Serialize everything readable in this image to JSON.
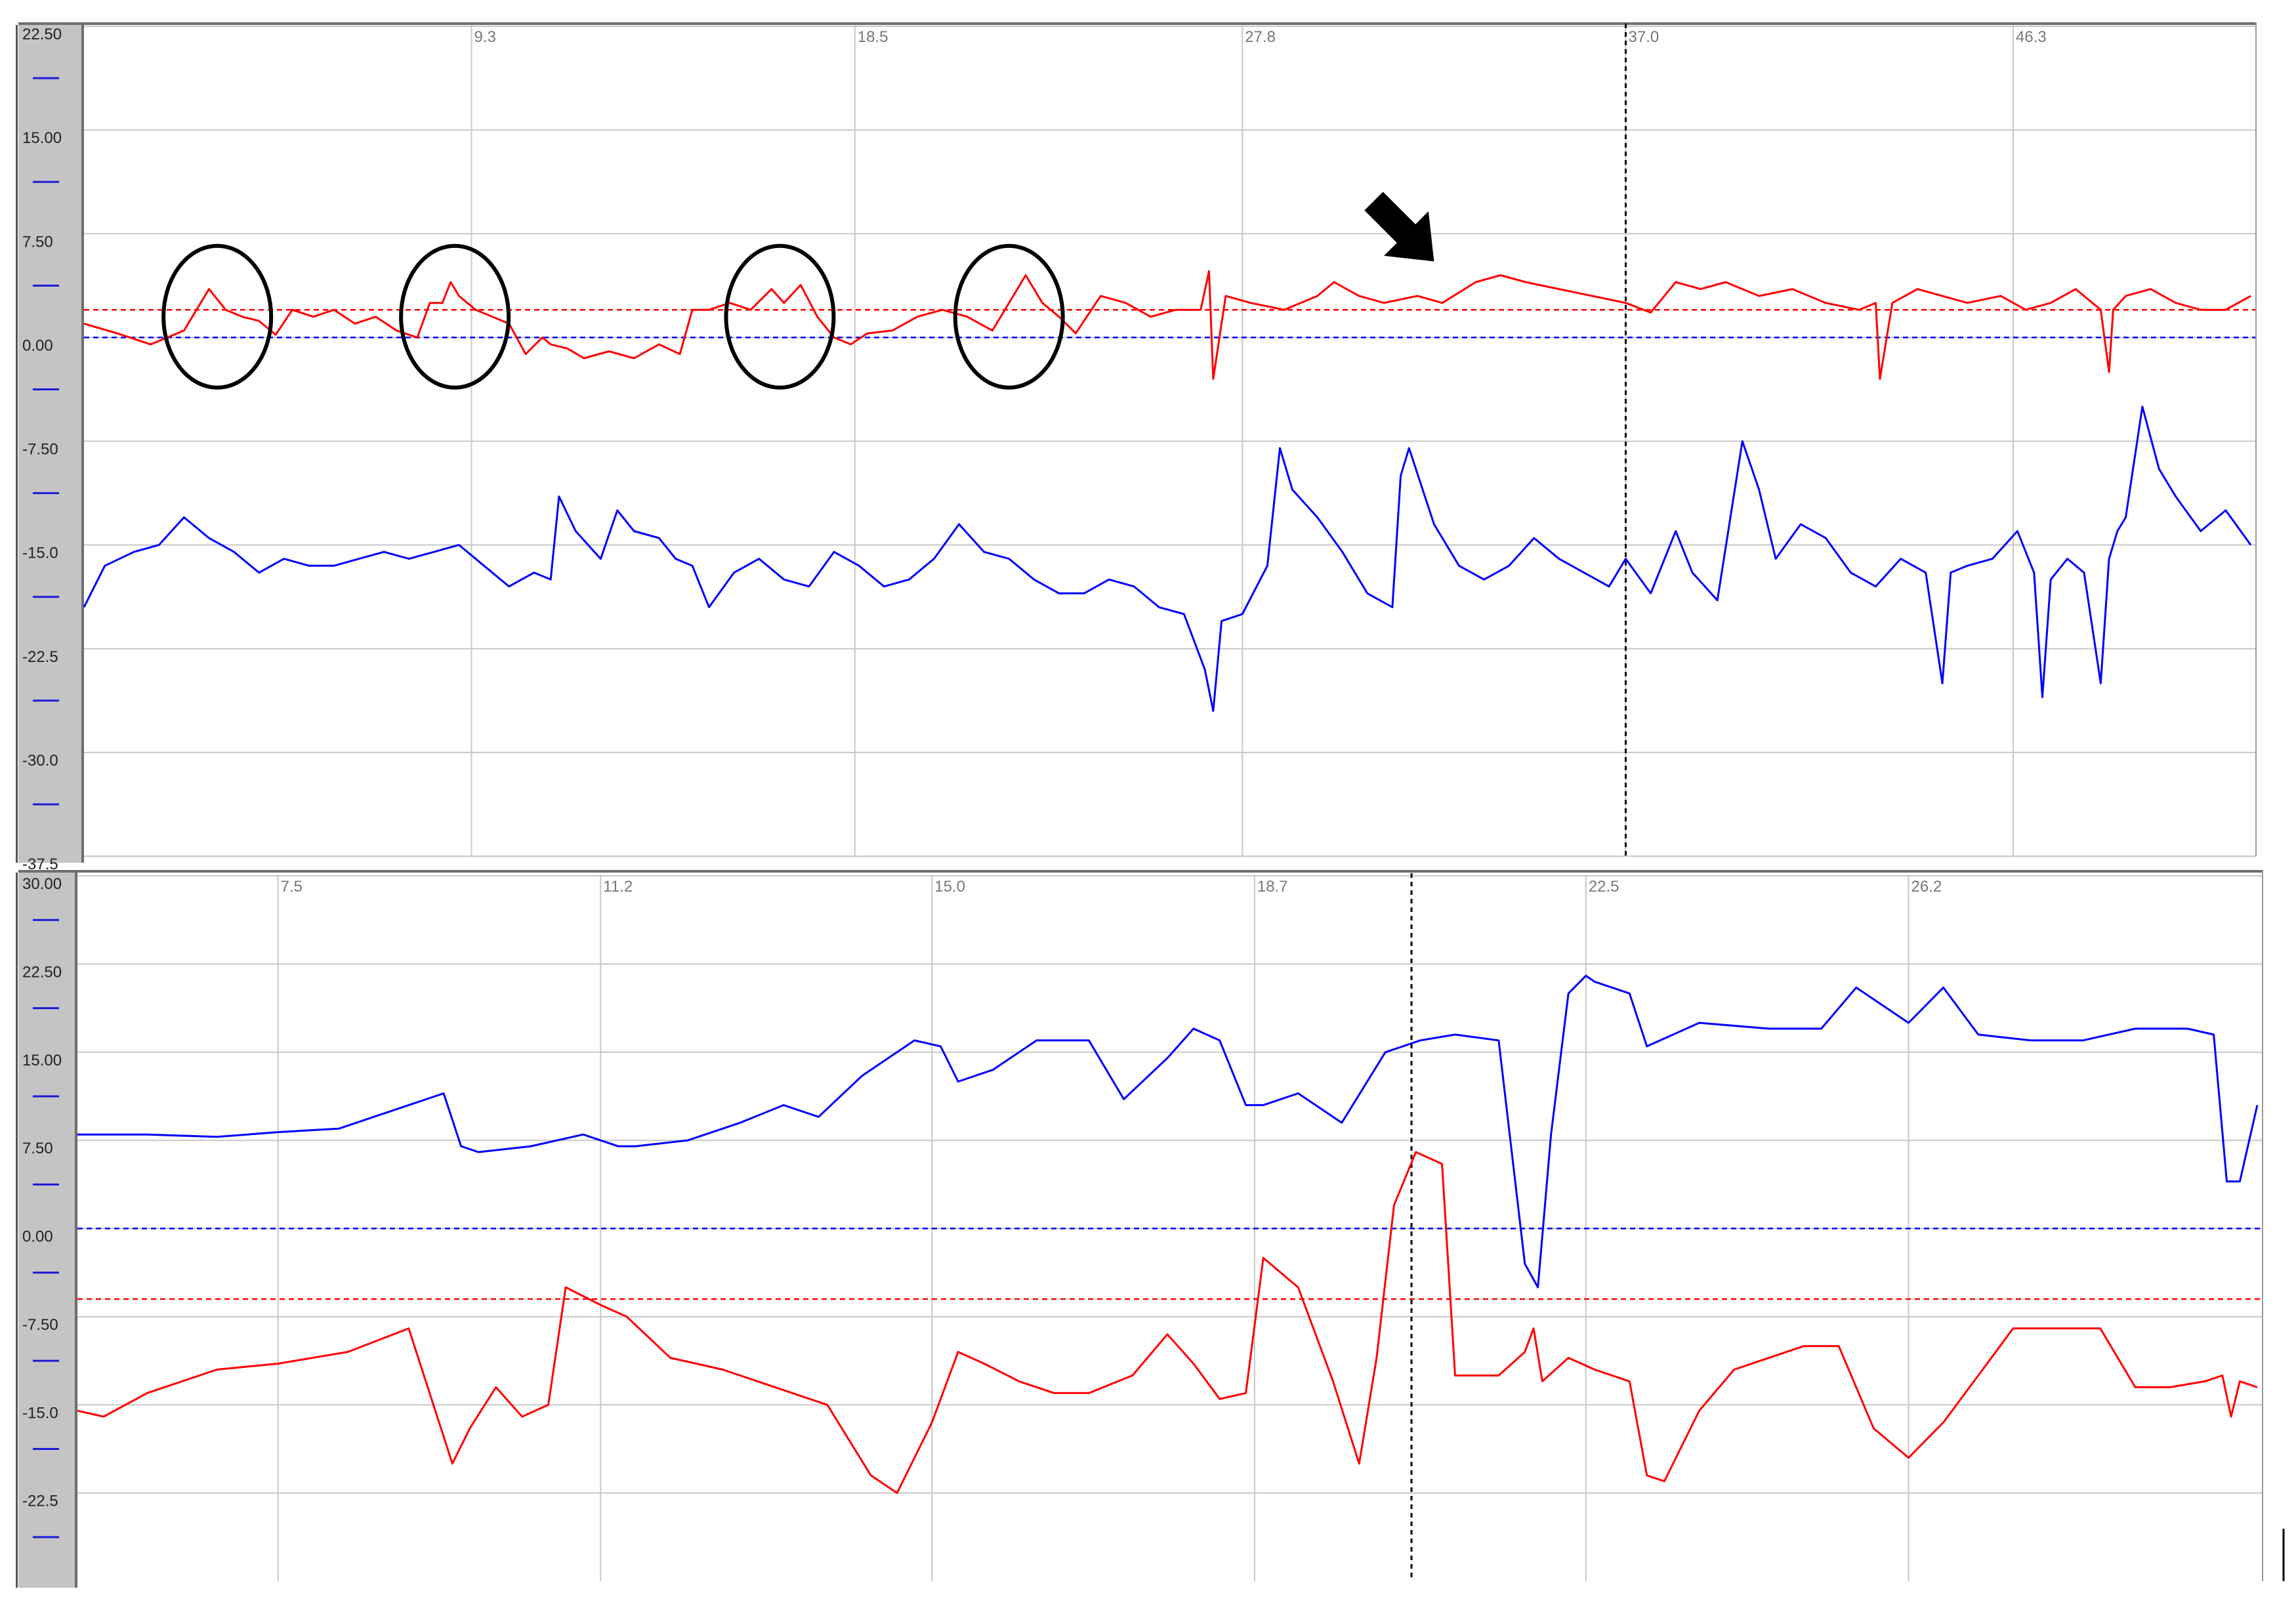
{
  "colors": {
    "red": "#ff0000",
    "blue": "#0000ff",
    "grid": "#c8c8c8",
    "axis_panel": "#c4c4c4",
    "frame": "#6e6e6e",
    "marker": "#000000"
  },
  "chart_data": [
    {
      "type": "line",
      "ylim": [
        -37.5,
        22.5
      ],
      "xlim": [
        0,
        52.0
      ],
      "y_ticks": [
        "22.50",
        "15.00",
        "7.50",
        "0.00",
        "-7.50",
        "-15.0",
        "-22.5",
        "-30.0",
        "-37.5"
      ],
      "y_tick_values": [
        22.5,
        15,
        7.5,
        0,
        -7.5,
        -15,
        -22.5,
        -30,
        -37.5
      ],
      "x_ticks": [
        "9.3",
        "18.5",
        "27.8",
        "37.0",
        "46.3"
      ],
      "x_tick_values": [
        9.3,
        18.5,
        27.8,
        37.0,
        46.3
      ],
      "cursor_x": 37.0,
      "reference_lines": [
        {
          "color": "red",
          "y": 2.0,
          "style": "dashed"
        },
        {
          "color": "blue",
          "y": 0.0,
          "style": "dashed"
        }
      ],
      "annotations": {
        "circles": [
          {
            "x": 3.2,
            "y": 1.5
          },
          {
            "x": 8.9,
            "y": 1.5
          },
          {
            "x": 16.7,
            "y": 1.5
          },
          {
            "x": 22.2,
            "y": 1.5
          }
        ],
        "arrow": {
          "x": 32.4,
          "y": 5.5,
          "direction": "down-right"
        }
      },
      "series": [
        {
          "color": "red",
          "x": [
            0,
            0.8,
            1.6,
            2.4,
            2.8,
            3.0,
            3.4,
            3.8,
            4.2,
            4.6,
            5.0,
            5.5,
            6.0,
            6.5,
            7.0,
            7.5,
            8.0,
            8.3,
            8.6,
            8.8,
            9.0,
            9.4,
            9.8,
            10.2,
            10.6,
            11.0,
            11.2,
            11.6,
            12.0,
            12.6,
            13.2,
            13.8,
            14.3,
            14.6,
            15.0,
            15.5,
            16.0,
            16.5,
            16.8,
            17.2,
            17.6,
            18.0,
            18.4,
            18.8,
            19.4,
            20.0,
            20.6,
            21.2,
            21.8,
            22.2,
            22.6,
            23.0,
            23.4,
            23.8,
            24.4,
            25.0,
            25.6,
            26.2,
            26.8,
            27.0,
            27.1,
            27.4,
            28.0,
            28.8,
            29.6,
            30.0,
            30.6,
            31.2,
            32.0,
            32.6,
            33.4,
            34.0,
            34.6,
            35.4,
            36.2,
            37.0,
            37.6,
            38.2,
            38.8,
            39.4,
            40.2,
            41.0,
            41.8,
            42.6,
            43.0,
            43.1,
            43.4,
            44.0,
            44.6,
            45.2,
            46.0,
            46.6,
            47.2,
            47.8,
            48.4,
            48.6,
            48.7,
            49.0,
            49.6,
            50.2,
            50.8,
            51.4,
            52.0
          ],
          "values": [
            1.0,
            0.3,
            -0.5,
            0.5,
            2.5,
            3.5,
            2.0,
            1.5,
            1.2,
            0.2,
            2.0,
            1.5,
            2.0,
            1.0,
            1.5,
            0.5,
            0.0,
            2.5,
            2.5,
            4.0,
            3.0,
            2.0,
            1.5,
            1.0,
            -1.2,
            0.0,
            -0.5,
            -0.8,
            -1.5,
            -1.0,
            -1.5,
            -0.5,
            -1.2,
            2.0,
            2.0,
            2.5,
            2.0,
            3.5,
            2.5,
            3.8,
            1.5,
            0.0,
            -0.5,
            0.3,
            0.5,
            1.5,
            2.0,
            1.5,
            0.5,
            2.5,
            4.5,
            2.5,
            1.5,
            0.3,
            3.0,
            2.5,
            1.5,
            2.0,
            2.0,
            4.8,
            -3.0,
            3.0,
            2.5,
            2.0,
            3.0,
            4.0,
            3.0,
            2.5,
            3.0,
            2.5,
            4.0,
            4.5,
            4.0,
            3.5,
            3.0,
            2.5,
            1.8,
            4.0,
            3.5,
            4.0,
            3.0,
            3.5,
            2.5,
            2.0,
            2.5,
            -3.0,
            2.5,
            3.5,
            3.0,
            2.5,
            3.0,
            2.0,
            2.5,
            3.5,
            2.0,
            -2.5,
            2.0,
            3.0,
            3.5,
            2.5,
            2.0,
            2.0,
            3.0
          ]
        },
        {
          "color": "blue",
          "x": [
            0,
            0.5,
            1.2,
            1.8,
            2.4,
            3.0,
            3.6,
            4.2,
            4.8,
            5.4,
            6.0,
            6.6,
            7.2,
            7.8,
            8.4,
            9.0,
            9.6,
            10.2,
            10.8,
            11.2,
            11.4,
            11.8,
            12.4,
            12.8,
            13.2,
            13.8,
            14.2,
            14.6,
            15.0,
            15.6,
            16.2,
            16.8,
            17.4,
            18.0,
            18.6,
            19.2,
            19.8,
            20.4,
            21.0,
            21.6,
            22.2,
            22.8,
            23.4,
            24.0,
            24.6,
            25.2,
            25.8,
            26.4,
            26.9,
            27.1,
            27.3,
            27.8,
            28.4,
            28.7,
            29.0,
            29.6,
            30.2,
            30.8,
            31.4,
            31.6,
            31.8,
            32.4,
            33.0,
            33.6,
            34.2,
            34.8,
            35.4,
            36.0,
            36.6,
            37.0,
            37.6,
            38.2,
            38.6,
            39.2,
            39.8,
            40.2,
            40.6,
            41.2,
            41.8,
            42.4,
            43.0,
            43.6,
            44.2,
            44.6,
            44.8,
            45.2,
            45.8,
            46.4,
            46.8,
            47.0,
            47.2,
            47.6,
            48.0,
            48.4,
            48.6,
            48.8,
            49.0,
            49.4,
            49.8,
            50.2,
            50.8,
            51.4,
            52.0
          ],
          "values": [
            -19.5,
            -16.5,
            -15.5,
            -15.0,
            -13.0,
            -14.5,
            -15.5,
            -17.0,
            -16.0,
            -16.5,
            -16.5,
            -16.0,
            -15.5,
            -16.0,
            -15.5,
            -15.0,
            -16.5,
            -18.0,
            -17.0,
            -17.5,
            -11.5,
            -14.0,
            -16.0,
            -12.5,
            -14.0,
            -14.5,
            -16.0,
            -16.5,
            -19.5,
            -17.0,
            -16.0,
            -17.5,
            -18.0,
            -15.5,
            -16.5,
            -18.0,
            -17.5,
            -16.0,
            -13.5,
            -15.5,
            -16.0,
            -17.5,
            -18.5,
            -18.5,
            -17.5,
            -18.0,
            -19.5,
            -20.0,
            -24.0,
            -27.0,
            -20.5,
            -20.0,
            -16.5,
            -8.0,
            -11.0,
            -13.0,
            -15.5,
            -18.5,
            -19.5,
            -10.0,
            -8.0,
            -13.5,
            -16.5,
            -17.5,
            -16.5,
            -14.5,
            -16.0,
            -17.0,
            -18.0,
            -16.0,
            -18.5,
            -14.0,
            -17.0,
            -19.0,
            -7.5,
            -11.0,
            -16.0,
            -13.5,
            -14.5,
            -17.0,
            -18.0,
            -16.0,
            -17.0,
            -25.0,
            -17.0,
            -16.5,
            -16.0,
            -14.0,
            -17.0,
            -26.0,
            -17.5,
            -16.0,
            -17.0,
            -25.0,
            -16.0,
            -14.0,
            -13.0,
            -5.0,
            -9.5,
            -11.5,
            -14.0,
            -12.5,
            -15.0
          ]
        }
      ]
    },
    {
      "type": "line",
      "ylim": [
        -30.0,
        30.0
      ],
      "xlim": [
        5.2,
        30.2
      ],
      "y_ticks": [
        "30.00",
        "22.50",
        "15.00",
        "7.50",
        "0.00",
        "-7.50",
        "-15.0",
        "-22.5"
      ],
      "y_tick_values": [
        30,
        22.5,
        15,
        7.5,
        0,
        -7.5,
        -15,
        -22.5
      ],
      "x_ticks": [
        "7.5",
        "11.2",
        "15.0",
        "18.7",
        "22.5",
        "26.2"
      ],
      "x_tick_values": [
        7.5,
        11.2,
        15.0,
        18.7,
        22.5,
        26.2
      ],
      "cursor_x": 20.5,
      "reference_lines": [
        {
          "color": "red",
          "y": -6.0,
          "style": "dashed"
        },
        {
          "color": "blue",
          "y": 0.0,
          "style": "dashed"
        }
      ],
      "series": [
        {
          "color": "blue",
          "x": [
            5.2,
            6.0,
            6.8,
            7.5,
            8.2,
            8.8,
            9.4,
            9.6,
            9.8,
            10.4,
            11.0,
            11.4,
            11.6,
            12.2,
            12.8,
            13.3,
            13.7,
            14.2,
            14.8,
            15.1,
            15.3,
            15.7,
            16.2,
            16.8,
            17.2,
            17.7,
            18.0,
            18.3,
            18.6,
            18.8,
            19.2,
            19.7,
            20.2,
            20.6,
            21.0,
            21.5,
            21.8,
            21.95,
            22.1,
            22.3,
            22.5,
            22.6,
            23.0,
            23.2,
            23.8,
            24.6,
            25.2,
            25.6,
            26.2,
            26.6,
            27.0,
            27.6,
            28.2,
            28.8,
            29.4,
            29.7,
            29.85,
            30.0,
            30.2
          ],
          "values": [
            8.0,
            8.0,
            7.8,
            8.2,
            8.5,
            10.0,
            11.5,
            7.0,
            6.5,
            7.0,
            8.0,
            7.0,
            7.0,
            7.5,
            9.0,
            10.5,
            9.5,
            13.0,
            16.0,
            15.5,
            12.5,
            13.5,
            16.0,
            16.0,
            11.0,
            14.5,
            17.0,
            16.0,
            10.5,
            10.5,
            11.5,
            9.0,
            15.0,
            16.0,
            16.5,
            16.0,
            -3.0,
            -5.0,
            8.0,
            20.0,
            21.5,
            21.0,
            20.0,
            15.5,
            17.5,
            17.0,
            17.0,
            20.5,
            17.5,
            20.5,
            16.5,
            16.0,
            16.0,
            17.0,
            17.0,
            16.5,
            4.0,
            4.0,
            10.5
          ]
        },
        {
          "color": "red",
          "x": [
            5.2,
            5.5,
            6.0,
            6.8,
            7.5,
            8.3,
            9.0,
            9.5,
            9.7,
            10.0,
            10.3,
            10.6,
            10.8,
            11.2,
            11.5,
            12.0,
            12.6,
            13.2,
            13.8,
            14.3,
            14.6,
            15.0,
            15.3,
            15.6,
            16.0,
            16.4,
            16.8,
            17.3,
            17.7,
            18.0,
            18.3,
            18.6,
            18.8,
            19.2,
            19.6,
            19.9,
            20.1,
            20.3,
            20.55,
            20.7,
            20.85,
            21.0,
            21.5,
            21.8,
            21.9,
            22.0,
            22.3,
            22.6,
            23.0,
            23.2,
            23.4,
            23.8,
            24.2,
            24.6,
            25.0,
            25.4,
            25.8,
            26.2,
            26.6,
            27.0,
            27.4,
            27.8,
            28.4,
            28.8,
            29.2,
            29.6,
            29.8,
            29.9,
            30.0,
            30.2
          ],
          "values": [
            -15.5,
            -16.0,
            -14.0,
            -12.0,
            -11.5,
            -10.5,
            -8.5,
            -20.0,
            -17.0,
            -13.5,
            -16.0,
            -15.0,
            -5.0,
            -6.5,
            -7.5,
            -11.0,
            -12.0,
            -13.5,
            -15.0,
            -21.0,
            -22.5,
            -16.5,
            -10.5,
            -11.5,
            -13.0,
            -14.0,
            -14.0,
            -12.5,
            -9.0,
            -11.5,
            -14.5,
            -14.0,
            -2.5,
            -5.0,
            -13.0,
            -20.0,
            -11.0,
            2.0,
            6.5,
            6.0,
            5.5,
            -12.5,
            -12.5,
            -10.5,
            -8.5,
            -13.0,
            -11.0,
            -12.0,
            -13.0,
            -21.0,
            -21.5,
            -15.5,
            -12.0,
            -11.0,
            -10.0,
            -10.0,
            -17.0,
            -19.5,
            -16.5,
            -12.5,
            -8.5,
            -8.5,
            -8.5,
            -13.5,
            -13.5,
            -13.0,
            -12.5,
            -16.0,
            -13.0,
            -13.5
          ]
        }
      ]
    }
  ]
}
